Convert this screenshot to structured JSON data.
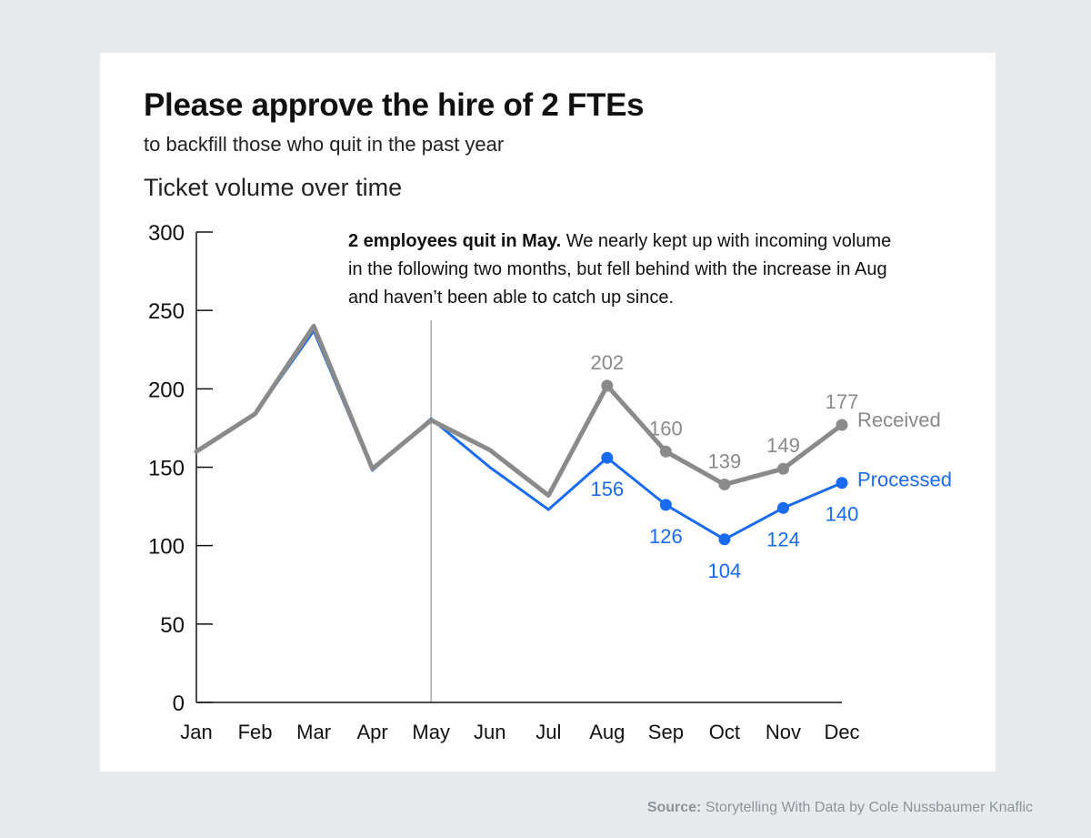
{
  "title": "Please approve the hire of 2 FTEs",
  "subtitle": "to backfill those who quit in the past year",
  "annotation": {
    "bold": "2 employees quit in May.",
    "line1": "We nearly kept up with incoming volume",
    "line2": "in the following two months, but fell behind with the increase in Aug",
    "line3": "and haven’t been able to catch up since."
  },
  "source": {
    "label": "Source:",
    "text": "Storytelling With Data by Cole Nussbaumer Knaflic"
  },
  "colors": {
    "received": "#8a8a8a",
    "processed": "#1a6bf2",
    "axis": "#111111",
    "marker": "#aaaaaa"
  },
  "chart_data": {
    "type": "line",
    "title": "Ticket volume over time",
    "xlabel": "",
    "ylabel": "",
    "ylim": [
      0,
      300
    ],
    "yticks": [
      0,
      50,
      100,
      150,
      200,
      250,
      300
    ],
    "categories": [
      "Jan",
      "Feb",
      "Mar",
      "Apr",
      "May",
      "Jun",
      "Jul",
      "Aug",
      "Sep",
      "Oct",
      "Nov",
      "Dec"
    ],
    "event_marker": "May",
    "series": [
      {
        "name": "Received",
        "values": [
          160,
          184,
          240,
          149,
          180,
          161,
          132,
          202,
          160,
          139,
          149,
          177
        ],
        "labeled_from": "Aug"
      },
      {
        "name": "Processed",
        "values": [
          160,
          184,
          237,
          148,
          181,
          150,
          123,
          156,
          126,
          104,
          124,
          140
        ],
        "labeled_from": "Aug"
      }
    ]
  }
}
